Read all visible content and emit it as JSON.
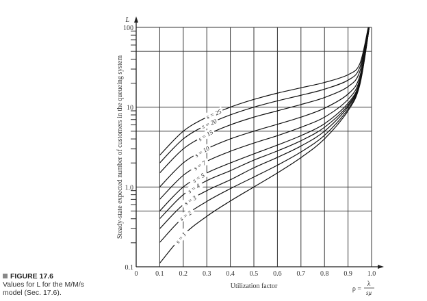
{
  "caption": {
    "figure_label": "FIGURE 17.6",
    "text_line1": "Values for L for the M/M/s",
    "text_line2": "model (Sec. 17.6)."
  },
  "chart_data": {
    "type": "line",
    "title": "",
    "xlabel": "Utilization factor",
    "xlabel_formula": "ρ = λ / sμ",
    "formula_lhs": "ρ =",
    "formula_num": "λ",
    "formula_den": "sμ",
    "ylabel": "Steady-state expected number of customers in the queueing system",
    "y_axis_symbol": "L",
    "y_scale": "log",
    "xlim": [
      0,
      1.0
    ],
    "ylim": [
      0.1,
      100
    ],
    "x_ticks": [
      "0",
      "0.1",
      "0.2",
      "0.3",
      "0.4",
      "0.5",
      "0.6",
      "0.7",
      "0.8",
      "0.9",
      "1.0"
    ],
    "y_ticks": [
      "0.1",
      "1.0",
      "10",
      "100"
    ],
    "grid": true,
    "x": [
      0.1,
      0.2,
      0.3,
      0.4,
      0.5,
      0.6,
      0.7,
      0.8,
      0.9,
      0.95,
      0.99
    ],
    "series": [
      {
        "name": "s = 1",
        "values": [
          0.111,
          0.25,
          0.429,
          0.667,
          1.0,
          1.5,
          2.333,
          4.0,
          9.0,
          19.0,
          99
        ]
      },
      {
        "name": "s = 2",
        "values": [
          0.202,
          0.417,
          0.659,
          0.952,
          1.333,
          1.875,
          2.745,
          4.444,
          9.474,
          19.49,
          99.5
        ]
      },
      {
        "name": "s = 3",
        "values": [
          0.3,
          0.6,
          0.9,
          1.23,
          1.74,
          2.35,
          3.26,
          5.0,
          10.1,
          20.1,
          100
        ]
      },
      {
        "name": "s = 4",
        "values": [
          0.4,
          0.8,
          1.2,
          1.6,
          2.17,
          2.83,
          3.8,
          5.6,
          10.6,
          20.7,
          100
        ]
      },
      {
        "name": "s = 5",
        "values": [
          0.5,
          1.0,
          1.5,
          2.0,
          2.6,
          3.35,
          4.4,
          6.2,
          11.2,
          21.2,
          100
        ]
      },
      {
        "name": "s = 7",
        "values": [
          0.7,
          1.4,
          2.1,
          2.8,
          3.55,
          4.4,
          5.6,
          7.5,
          12.5,
          22.5,
          101
        ]
      },
      {
        "name": "s = 10",
        "values": [
          1.0,
          2.0,
          3.0,
          4.0,
          5.0,
          6.1,
          7.5,
          9.7,
          14.6,
          24.5,
          103
        ]
      },
      {
        "name": "s = 15",
        "values": [
          1.5,
          3.0,
          4.5,
          6.0,
          7.5,
          9.0,
          10.8,
          13.2,
          18.1,
          28,
          106
        ]
      },
      {
        "name": "s = 20",
        "values": [
          2.0,
          4.0,
          6.0,
          8.0,
          10.0,
          12.0,
          14.1,
          16.8,
          21.8,
          31.5,
          109
        ]
      },
      {
        "name": "s = 25",
        "values": [
          2.5,
          5.0,
          7.5,
          10.0,
          12.5,
          15.0,
          17.5,
          20.4,
          25.5,
          35,
          113
        ]
      }
    ]
  }
}
